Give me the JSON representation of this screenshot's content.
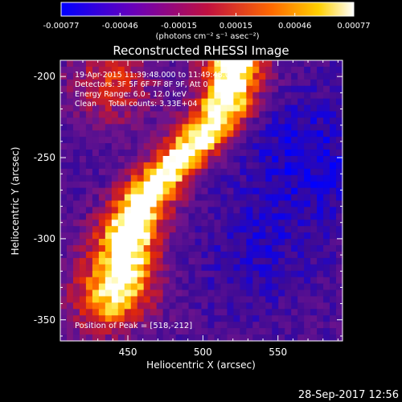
{
  "chart_data": {
    "type": "heatmap",
    "title": "Reconstructed RHESSI Image",
    "xlabel": "Heliocentric X (arcsec)",
    "ylabel": "Heliocentric Y (arcsec)",
    "xlim": [
      405,
      593
    ],
    "ylim": [
      -363,
      -190
    ],
    "x_ticks": [
      450,
      500,
      550
    ],
    "y_ticks": [
      -200,
      -250,
      -300,
      -350
    ],
    "colorbar": {
      "ticks": [
        "-0.00077",
        "-0.00046",
        "-0.00015",
        "0.00015",
        "0.00046",
        "0.00077"
      ],
      "tick_values": [
        -0.00077,
        -0.00046,
        -0.00015,
        0.00015,
        0.00046,
        0.00077
      ],
      "unit_label": "(photons cm⁻² s⁻¹ asec⁻²)",
      "min": -0.00077,
      "max": 0.00077
    },
    "annotations": [
      "19-Apr-2015 11:39:48.000 to 11:49:48.000",
      "Detectors: 3F 5F 6F 7F 8F 9F, Att 0",
      "Energy Range: 6.0 - 12.0 keV",
      "Clean     Total counts: 3.33E+04"
    ],
    "peak_label": "Position of Peak = [518,-212]",
    "peak": [
      518,
      -212
    ],
    "grid": false
  },
  "footer": {
    "timestamp": "28-Sep-2017 12:56"
  }
}
